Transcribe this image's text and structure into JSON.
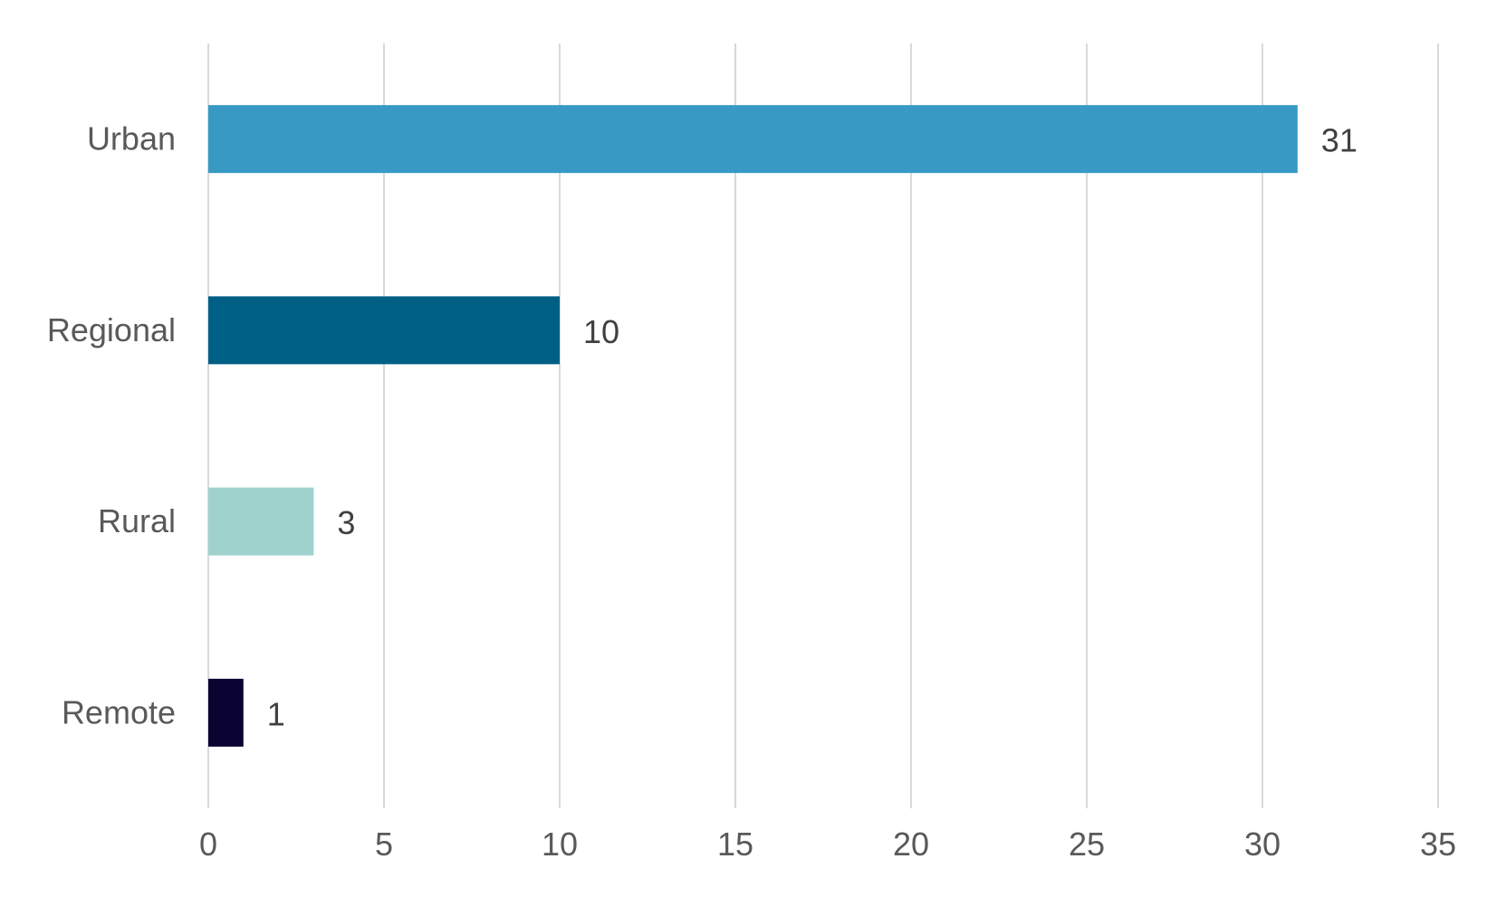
{
  "chart_data": {
    "type": "bar",
    "orientation": "horizontal",
    "categories": [
      "Urban",
      "Regional",
      "Rural",
      "Remote"
    ],
    "values": [
      31,
      10,
      3,
      1
    ],
    "colors": [
      "#3899c5",
      "#005f85",
      "#9fd2cc",
      "#0b0433"
    ],
    "data_labels": [
      "31",
      "10",
      "3",
      "1"
    ],
    "xlim": [
      0,
      35
    ],
    "x_ticks": [
      0,
      5,
      10,
      15,
      20,
      25,
      30,
      35
    ],
    "x_tick_labels": [
      "0",
      "5",
      "10",
      "15",
      "20",
      "25",
      "30",
      "35"
    ],
    "grid": "vertical",
    "gridline_color": "#d9d9d9",
    "legend": "none",
    "title": "",
    "xlabel": "",
    "ylabel": ""
  }
}
